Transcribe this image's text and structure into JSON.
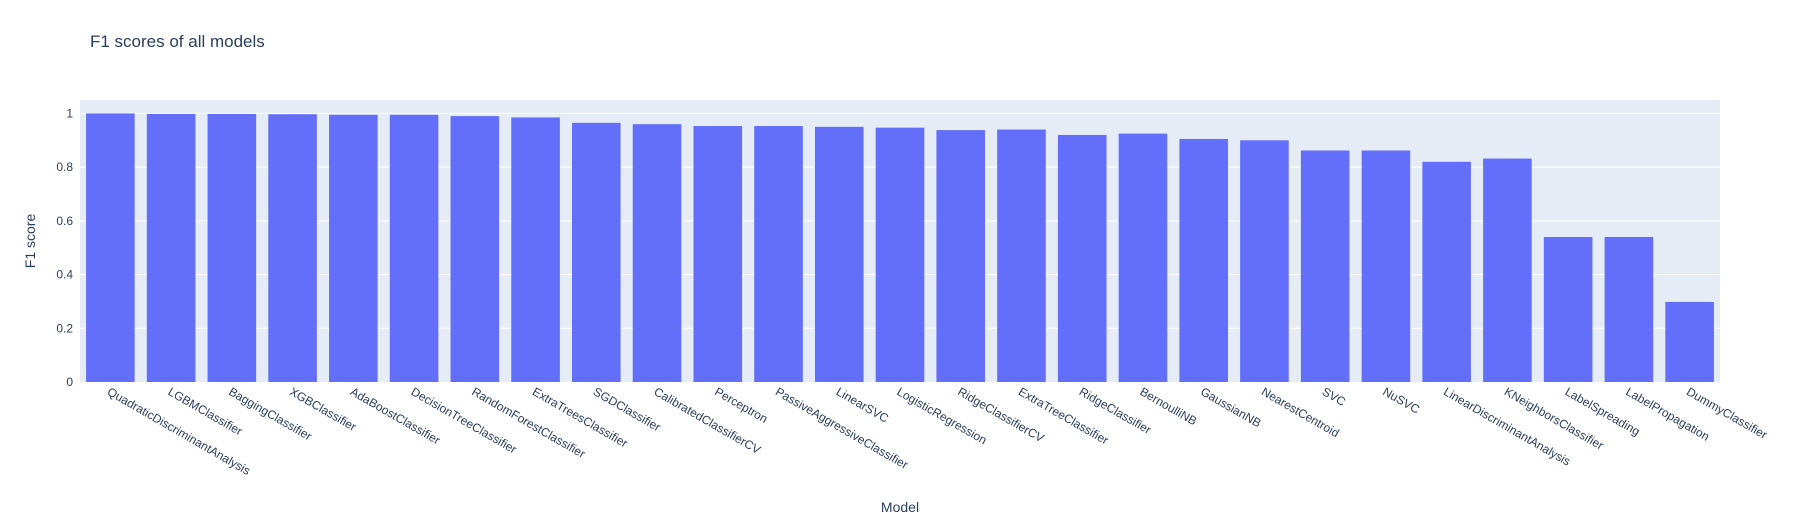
{
  "chart_data": {
    "type": "bar",
    "title": "F1 scores of all models",
    "xlabel": "Model",
    "ylabel": "F1 score",
    "ylim": [
      0,
      1.05
    ],
    "yticks": [
      0,
      0.2,
      0.4,
      0.6,
      0.8,
      1
    ],
    "ytick_labels": [
      "0",
      "0.2",
      "0.4",
      "0.6",
      "0.8",
      "1"
    ],
    "grid": true,
    "legend": "none",
    "colors": {
      "bar": "#636efa",
      "plot_bg": "#e5ecf6",
      "grid": "#ffffff",
      "text": "#2a3f5f"
    },
    "categories": [
      "QuadraticDiscriminantAnalysis",
      "LGBMClassifier",
      "BaggingClassifier",
      "XGBClassifier",
      "AdaBoostClassifier",
      "DecisionTreeClassifier",
      "RandomForestClassifier",
      "ExtraTreesClassifier",
      "SGDClassifier",
      "CalibratedClassifierCV",
      "Perceptron",
      "PassiveAggressiveClassifier",
      "LinearSVC",
      "LogisticRegression",
      "RidgeClassifierCV",
      "ExtraTreeClassifier",
      "RidgeClassifier",
      "BernoulliNB",
      "GaussianNB",
      "NearestCentroid",
      "SVC",
      "NuSVC",
      "LinearDiscriminantAnalysis",
      "KNeighborsClassifier",
      "LabelSpreading",
      "LabelPropagation",
      "DummyClassifier"
    ],
    "values": [
      1.0,
      0.998,
      0.998,
      0.997,
      0.995,
      0.995,
      0.99,
      0.985,
      0.965,
      0.96,
      0.953,
      0.953,
      0.95,
      0.947,
      0.938,
      0.94,
      0.92,
      0.925,
      0.905,
      0.9,
      0.862,
      0.862,
      0.82,
      0.832,
      0.54,
      0.54,
      0.298
    ]
  }
}
